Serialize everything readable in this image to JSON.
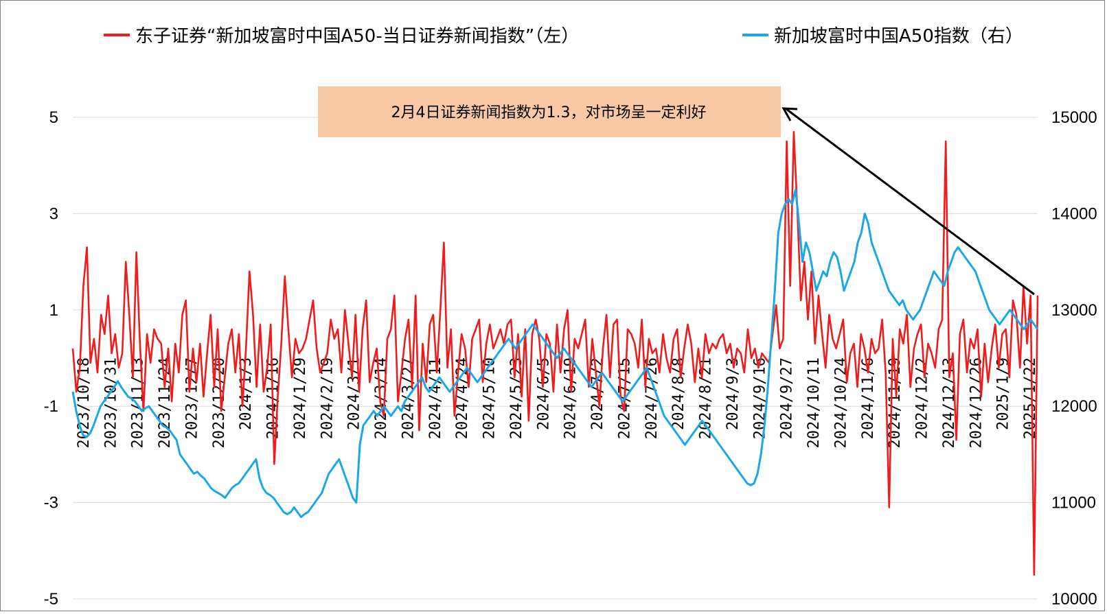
{
  "chart_data": {
    "type": "line",
    "title": "",
    "legend_position": "top",
    "grid": "horizontal",
    "colors": {
      "red_series": "#ee1c1c",
      "blue_series": "#1aa7e8",
      "annotation_bg": "#f9c9a6",
      "grid": "#d9d9d9"
    },
    "y_left": {
      "ticks": [
        "5",
        "3",
        "1",
        "-1",
        "-3",
        "-5"
      ],
      "range": [
        -5,
        5.5
      ]
    },
    "y_right": {
      "ticks": [
        "15000",
        "14000",
        "13000",
        "12000",
        "11000",
        "10000"
      ],
      "range": [
        10000,
        15500
      ]
    },
    "x_ticks": [
      "2023/10/18",
      "2023/10/31",
      "2023/11/13",
      "2023/11/24",
      "2023/12/7",
      "2023/12/20",
      "2024/1/3",
      "2024/1/16",
      "2024/1/29",
      "2024/2/19",
      "2024/3/1",
      "2024/3/14",
      "2024/3/27",
      "2024/4/11",
      "2024/4/24",
      "2024/5/10",
      "2024/5/23",
      "2024/6/5",
      "2024/6/19",
      "2024/7/2",
      "2024/7/15",
      "2024/7/26",
      "2024/8/8",
      "2024/8/21",
      "2024/9/3",
      "2024/9/16",
      "2024/9/27",
      "2024/10/11",
      "2024/10/24",
      "2024/11/6",
      "2024/11/19",
      "2024/12/2",
      "2024/12/13",
      "2024/12/26",
      "2025/1/9",
      "2025/1/22"
    ],
    "series": [
      {
        "name": "东子证券“新加坡富时中国A50-当日证券新闻指数”（左）",
        "axis": "left",
        "values": [
          0.2,
          -0.7,
          -0.2,
          1.5,
          2.3,
          -0.1,
          0.4,
          -0.3,
          0.9,
          0.5,
          1.3,
          0.1,
          0.5,
          -0.2,
          0.1,
          2.0,
          0.9,
          -0.4,
          2.2,
          0.3,
          -1.1,
          0.5,
          -0.1,
          0.6,
          0.4,
          0.3,
          -0.6,
          0.2,
          -0.9,
          0.3,
          -0.3,
          0.9,
          1.2,
          -0.7,
          0.2,
          -0.5,
          0.3,
          -0.8,
          0.1,
          0.9,
          -0.6,
          0.6,
          -1.1,
          -0.4,
          0.3,
          0.6,
          -0.3,
          0.5,
          -1.0,
          0.2,
          1.8,
          0.9,
          -0.6,
          0.7,
          -0.7,
          -0.2,
          0.7,
          -2.2,
          -0.8,
          0.3,
          1.7,
          0.6,
          -0.4,
          0.4,
          0.1,
          0.2,
          0.4,
          0.8,
          1.2,
          0.2,
          -0.3,
          -0.1,
          0.1,
          0.8,
          0.4,
          0.6,
          -0.3,
          1.0,
          0.3,
          -0.4,
          0.9,
          -0.7,
          0.6,
          1.2,
          -0.5,
          -0.1,
          0.2,
          -0.9,
          -1.2,
          0.4,
          0.6,
          1.3,
          -0.9,
          -0.3,
          0.4,
          0.8,
          -0.6,
          1.3,
          -1.5,
          0.3,
          -0.5,
          0.7,
          0.9,
          -0.3,
          1.0,
          2.4,
          -0.2,
          0.6,
          -1.2,
          -0.3,
          0.5,
          0.2,
          -0.6,
          0.4,
          0.6,
          0.8,
          -0.5,
          0.3,
          0.7,
          0.2,
          0.4,
          0.6,
          0.3,
          0.7,
          0.8,
          -0.4,
          0.5,
          -0.8,
          0.6,
          -1.3,
          0.5,
          0.8,
          0.4,
          -0.6,
          0.5,
          0.3,
          -0.7,
          0.7,
          -0.3,
          0.6,
          1.0,
          -0.7,
          0.4,
          0.2,
          0.5,
          0.8,
          -0.6,
          0.4,
          -0.3,
          -1.0,
          0.2,
          0.9,
          -0.4,
          0.7,
          0.8,
          -0.8,
          -1.1,
          0.6,
          0.5,
          0.3,
          -0.2,
          0.8,
          -0.6,
          0.4,
          0.1,
          0.2,
          -0.3,
          0.5,
          0.0,
          -0.3,
          0.4,
          0.6,
          -0.4,
          0.2,
          0.7,
          0.3,
          -0.5,
          0.2,
          -0.4,
          0.5,
          0.1,
          0.3,
          0.2,
          0.4,
          0.5,
          0.1,
          0.3,
          -0.2,
          0.2,
          0.1,
          -0.3,
          0.6,
          0.0,
          0.2,
          -0.2,
          0.1,
          0.0,
          -0.1,
          0.5,
          1.1,
          0.2,
          0.4,
          4.5,
          1.5,
          4.7,
          3.1,
          1.2,
          2.0,
          0.8,
          1.8,
          0.3,
          1.3,
          0.5,
          -0.2,
          0.9,
          0.4,
          0.2,
          0.5,
          0.8,
          -0.5,
          0.1,
          0.3,
          -0.6,
          0.5,
          0.2,
          -0.3,
          0.4,
          0.1,
          0.2,
          0.8,
          -0.3,
          -3.1,
          0.4,
          -0.8,
          0.6,
          0.3,
          0.9,
          -0.6,
          0.2,
          0.5,
          0.7,
          -0.4,
          0.3,
          0.1,
          -0.2,
          0.6,
          0.8,
          4.5,
          -0.4,
          0.1,
          -1.7,
          0.5,
          0.8,
          -0.3,
          0.4,
          0.2,
          0.6,
          -0.8,
          0.3,
          -0.5,
          0.2,
          0.7,
          -0.2,
          0.5,
          0.6,
          -0.4,
          1.2,
          0.9,
          -0.2,
          1.5,
          0.3,
          1.3,
          -4.5,
          1.3
        ]
      },
      {
        "name": "新加坡富时中国A50指数（右）",
        "axis": "right",
        "values": [
          12150,
          11950,
          11800,
          11700,
          11680,
          11720,
          11800,
          11900,
          12000,
          12050,
          12100,
          12150,
          12200,
          12260,
          12200,
          12150,
          12100,
          12080,
          12050,
          12000,
          11950,
          11980,
          12000,
          11950,
          11900,
          11850,
          11800,
          11780,
          11750,
          11700,
          11650,
          11500,
          11450,
          11400,
          11350,
          11300,
          11320,
          11280,
          11250,
          11200,
          11150,
          11120,
          11100,
          11080,
          11050,
          11100,
          11150,
          11180,
          11200,
          11250,
          11300,
          11350,
          11400,
          11450,
          11250,
          11150,
          11100,
          11080,
          11050,
          11000,
          10950,
          10900,
          10880,
          10900,
          10950,
          10900,
          10850,
          10880,
          10900,
          10950,
          11000,
          11050,
          11100,
          11200,
          11300,
          11350,
          11400,
          11450,
          11350,
          11250,
          11150,
          11050,
          11000,
          11600,
          11800,
          11850,
          11900,
          11950,
          11900,
          11950,
          12000,
          11950,
          11900,
          11950,
          12000,
          11950,
          12050,
          12100,
          12150,
          12200,
          12250,
          12300,
          12200,
          12150,
          12200,
          12250,
          12300,
          12250,
          12200,
          12150,
          12200,
          12250,
          12300,
          12350,
          12400,
          12350,
          12300,
          12250,
          12300,
          12350,
          12400,
          12450,
          12500,
          12550,
          12600,
          12650,
          12700,
          12650,
          12600,
          12650,
          12700,
          12750,
          12800,
          12850,
          12800,
          12750,
          12700,
          12650,
          12600,
          12550,
          12500,
          12550,
          12600,
          12550,
          12500,
          12450,
          12400,
          12350,
          12300,
          12250,
          12200,
          12250,
          12300,
          12350,
          12300,
          12250,
          12200,
          12150,
          12100,
          12050,
          12100,
          12150,
          12200,
          12250,
          12300,
          12350,
          12400,
          12300,
          12200,
          12100,
          12000,
          11900,
          11850,
          11800,
          11750,
          11700,
          11650,
          11600,
          11650,
          11700,
          11750,
          11800,
          11850,
          11800,
          11750,
          11700,
          11650,
          11600,
          11550,
          11500,
          11450,
          11400,
          11350,
          11300,
          11250,
          11200,
          11180,
          11200,
          11300,
          11500,
          11800,
          12200,
          12700,
          13200,
          13800,
          14000,
          14100,
          14150,
          14100,
          14250,
          13900,
          13500,
          13700,
          13600,
          13400,
          13200,
          13300,
          13400,
          13350,
          13500,
          13600,
          13550,
          13400,
          13200,
          13300,
          13400,
          13500,
          13700,
          13800,
          14000,
          13900,
          13700,
          13600,
          13500,
          13400,
          13300,
          13200,
          13150,
          13100,
          13050,
          13100,
          13000,
          12950,
          12900,
          12950,
          13000,
          13100,
          13200,
          13300,
          13400,
          13350,
          13300,
          13250,
          13400,
          13500,
          13600,
          13650,
          13600,
          13550,
          13500,
          13450,
          13400,
          13300,
          13200,
          13100,
          13000,
          12950,
          12900,
          12850,
          12900,
          12950,
          13000,
          12950,
          12900,
          12850,
          12800,
          12850,
          12900,
          12850,
          12800
        ]
      }
    ],
    "annotation": {
      "text": "2月4日证券新闻指数为1.3，对市场呈一定利好"
    }
  }
}
